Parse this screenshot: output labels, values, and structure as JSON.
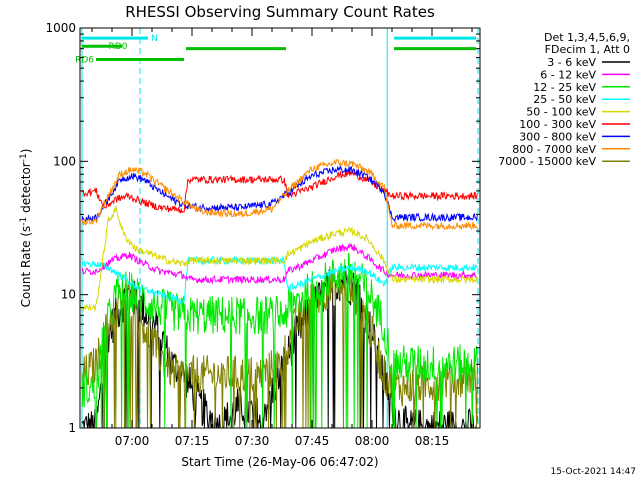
{
  "chart_data": {
    "type": "line",
    "title": "RHESSI Observing Summary Count Rates",
    "xlabel": "Start Time (26-May-06 06:47:02)",
    "ylabel_main": "Count Rate (s",
    "ylabel_sup1": "-1",
    "ylabel_mid": " detector",
    "ylabel_sup2": "-1",
    "ylabel_end": ")",
    "x_unit": "minutes after 06:47:02",
    "xlim": [
      0,
      100
    ],
    "ylim": [
      1,
      1000
    ],
    "yscale": "log",
    "x_ticks": [
      {
        "label": "07:00",
        "value": 13
      },
      {
        "label": "07:15",
        "value": 28
      },
      {
        "label": "07:30",
        "value": 43
      },
      {
        "label": "07:45",
        "value": 58
      },
      {
        "label": "08:00",
        "value": 73
      },
      {
        "label": "08:15",
        "value": 88
      }
    ],
    "y_ticks": [
      {
        "label": "1",
        "value": 1
      },
      {
        "label": "10",
        "value": 10
      },
      {
        "label": "100",
        "value": 100
      },
      {
        "label": "1000",
        "value": 1000
      }
    ],
    "legend_header_1": "Det 1,3,4,5,6,9,",
    "legend_header_2": "FDecim 1, Att 0",
    "timestamp": "15-Oct-2021 14:47",
    "bars": [
      {
        "label": "RD0",
        "color": "#00c000",
        "segments": [
          [
            0.5,
            10.5
          ]
        ],
        "level": 730
      },
      {
        "label": "",
        "color": "#00c000",
        "segments": [
          [
            26.5,
            51.5
          ],
          [
            78.5,
            99
          ]
        ],
        "level": 700
      },
      {
        "label": "RD6",
        "color": "#00c000",
        "segments": [
          [
            4,
            26
          ]
        ],
        "level": 580
      },
      {
        "label": "N",
        "color": "#00e8e8",
        "segments": [
          [
            0.5,
            17
          ],
          [
            78.5,
            99
          ]
        ],
        "level": 840
      }
    ],
    "eclipse_lines": {
      "solid": [
        0.5,
        76.8
      ],
      "dashed": [
        15,
        99.5
      ],
      "color": "#00e8e8"
    },
    "jump_times": {
      "saa_exit": 4,
      "t2": 26.5,
      "t3": 51.5,
      "t4": 75.5
    },
    "series": [
      {
        "name": "3 - 6 keV",
        "color": "#000000",
        "values": [
          [
            1,
            1
          ],
          [
            4,
            1
          ],
          [
            7,
            5
          ],
          [
            10,
            8
          ],
          [
            12,
            10
          ],
          [
            14,
            9
          ],
          [
            17,
            7
          ],
          [
            20,
            5
          ],
          [
            23,
            3
          ],
          [
            26,
            2.5
          ],
          [
            30,
            1.5
          ],
          [
            35,
            1
          ],
          [
            40,
            1.5
          ],
          [
            45,
            1.2
          ],
          [
            50,
            2.5
          ],
          [
            54,
            5
          ],
          [
            58,
            8
          ],
          [
            62,
            11
          ],
          [
            66,
            13
          ],
          [
            70,
            10
          ],
          [
            73,
            5
          ],
          [
            76,
            2.5
          ],
          [
            79,
            1.2
          ],
          [
            82,
            1
          ],
          [
            90,
            1
          ],
          [
            99,
            1
          ]
        ]
      },
      {
        "name": "6 - 12 keV",
        "color": "#ff00ff",
        "values": [
          [
            1,
            15
          ],
          [
            4,
            15
          ],
          [
            8,
            18
          ],
          [
            12,
            20
          ],
          [
            16,
            17
          ],
          [
            20,
            15
          ],
          [
            26,
            14
          ],
          [
            27,
            13
          ],
          [
            40,
            13
          ],
          [
            51,
            13
          ],
          [
            52,
            15
          ],
          [
            58,
            18
          ],
          [
            64,
            22
          ],
          [
            68,
            23
          ],
          [
            72,
            19
          ],
          [
            76,
            15
          ],
          [
            78,
            14
          ],
          [
            99,
            14
          ]
        ]
      },
      {
        "name": "12 - 25 keV",
        "color": "#00e800",
        "values": [
          [
            1,
            2
          ],
          [
            4,
            2
          ],
          [
            6,
            5
          ],
          [
            9,
            10
          ],
          [
            12,
            11
          ],
          [
            16,
            9
          ],
          [
            20,
            8
          ],
          [
            26,
            7
          ],
          [
            27,
            7
          ],
          [
            51,
            7
          ],
          [
            52,
            8
          ],
          [
            58,
            11
          ],
          [
            64,
            14
          ],
          [
            68,
            15
          ],
          [
            72,
            11
          ],
          [
            76,
            6
          ],
          [
            78,
            3
          ],
          [
            99,
            3
          ]
        ]
      },
      {
        "name": "25 - 50 keV",
        "color": "#00ffff",
        "values": [
          [
            1,
            17
          ],
          [
            4,
            17
          ],
          [
            7,
            16
          ],
          [
            10,
            14
          ],
          [
            13,
            12
          ],
          [
            16,
            11
          ],
          [
            20,
            10
          ],
          [
            26,
            9
          ],
          [
            27,
            18
          ],
          [
            51,
            18
          ],
          [
            52,
            11
          ],
          [
            58,
            13
          ],
          [
            64,
            15
          ],
          [
            68,
            16
          ],
          [
            72,
            15
          ],
          [
            76,
            12
          ],
          [
            78,
            16
          ],
          [
            99,
            16
          ]
        ]
      },
      {
        "name": "50 - 100 keV",
        "color": "#d8d800",
        "values": [
          [
            1,
            8
          ],
          [
            4,
            8
          ],
          [
            7,
            35
          ],
          [
            9,
            44
          ],
          [
            11,
            28
          ],
          [
            14,
            22
          ],
          [
            18,
            20
          ],
          [
            22,
            18
          ],
          [
            26,
            17
          ],
          [
            27,
            18
          ],
          [
            51,
            18
          ],
          [
            52,
            20
          ],
          [
            58,
            25
          ],
          [
            64,
            29
          ],
          [
            68,
            30
          ],
          [
            72,
            26
          ],
          [
            76,
            18
          ],
          [
            78,
            13
          ],
          [
            99,
            13
          ]
        ]
      },
      {
        "name": "100 - 300 keV",
        "color": "#ff0000",
        "values": [
          [
            1,
            58
          ],
          [
            4,
            60
          ],
          [
            6,
            45
          ],
          [
            9,
            52
          ],
          [
            12,
            55
          ],
          [
            16,
            49
          ],
          [
            20,
            45
          ],
          [
            26,
            43
          ],
          [
            27,
            73
          ],
          [
            51,
            73
          ],
          [
            52,
            55
          ],
          [
            58,
            64
          ],
          [
            64,
            78
          ],
          [
            68,
            82
          ],
          [
            72,
            72
          ],
          [
            76,
            60
          ],
          [
            78,
            55
          ],
          [
            99,
            55
          ]
        ]
      },
      {
        "name": "300 - 800 keV",
        "color": "#0000ff",
        "values": [
          [
            1,
            37
          ],
          [
            4,
            38
          ],
          [
            7,
            52
          ],
          [
            10,
            73
          ],
          [
            13,
            78
          ],
          [
            16,
            73
          ],
          [
            19,
            62
          ],
          [
            23,
            52
          ],
          [
            26,
            47
          ],
          [
            30,
            45
          ],
          [
            40,
            45
          ],
          [
            48,
            48
          ],
          [
            52,
            58
          ],
          [
            58,
            78
          ],
          [
            64,
            87
          ],
          [
            68,
            86
          ],
          [
            72,
            76
          ],
          [
            76,
            60
          ],
          [
            78,
            38
          ],
          [
            99,
            38
          ]
        ]
      },
      {
        "name": "800 - 7000 keV",
        "color": "#ff8c00",
        "values": [
          [
            1,
            35
          ],
          [
            4,
            36
          ],
          [
            7,
            55
          ],
          [
            10,
            80
          ],
          [
            13,
            87
          ],
          [
            16,
            82
          ],
          [
            19,
            70
          ],
          [
            23,
            57
          ],
          [
            26,
            50
          ],
          [
            30,
            42
          ],
          [
            40,
            40
          ],
          [
            48,
            44
          ],
          [
            52,
            60
          ],
          [
            58,
            88
          ],
          [
            64,
            98
          ],
          [
            68,
            96
          ],
          [
            72,
            84
          ],
          [
            76,
            65
          ],
          [
            78,
            33
          ],
          [
            99,
            33
          ]
        ]
      },
      {
        "name": "7000 - 15000 keV",
        "color": "#808000",
        "values": [
          [
            1,
            2.5
          ],
          [
            4,
            3
          ],
          [
            7,
            6
          ],
          [
            10,
            9
          ],
          [
            12,
            9.5
          ],
          [
            14,
            8
          ],
          [
            17,
            5
          ],
          [
            20,
            3.5
          ],
          [
            24,
            2.5
          ],
          [
            27,
            2.5
          ],
          [
            35,
            2.5
          ],
          [
            45,
            2.5
          ],
          [
            50,
            3
          ],
          [
            54,
            6
          ],
          [
            58,
            9
          ],
          [
            62,
            11
          ],
          [
            66,
            12
          ],
          [
            70,
            9
          ],
          [
            73,
            5
          ],
          [
            76,
            2.5
          ],
          [
            79,
            2
          ],
          [
            99,
            2.5
          ]
        ]
      }
    ]
  }
}
